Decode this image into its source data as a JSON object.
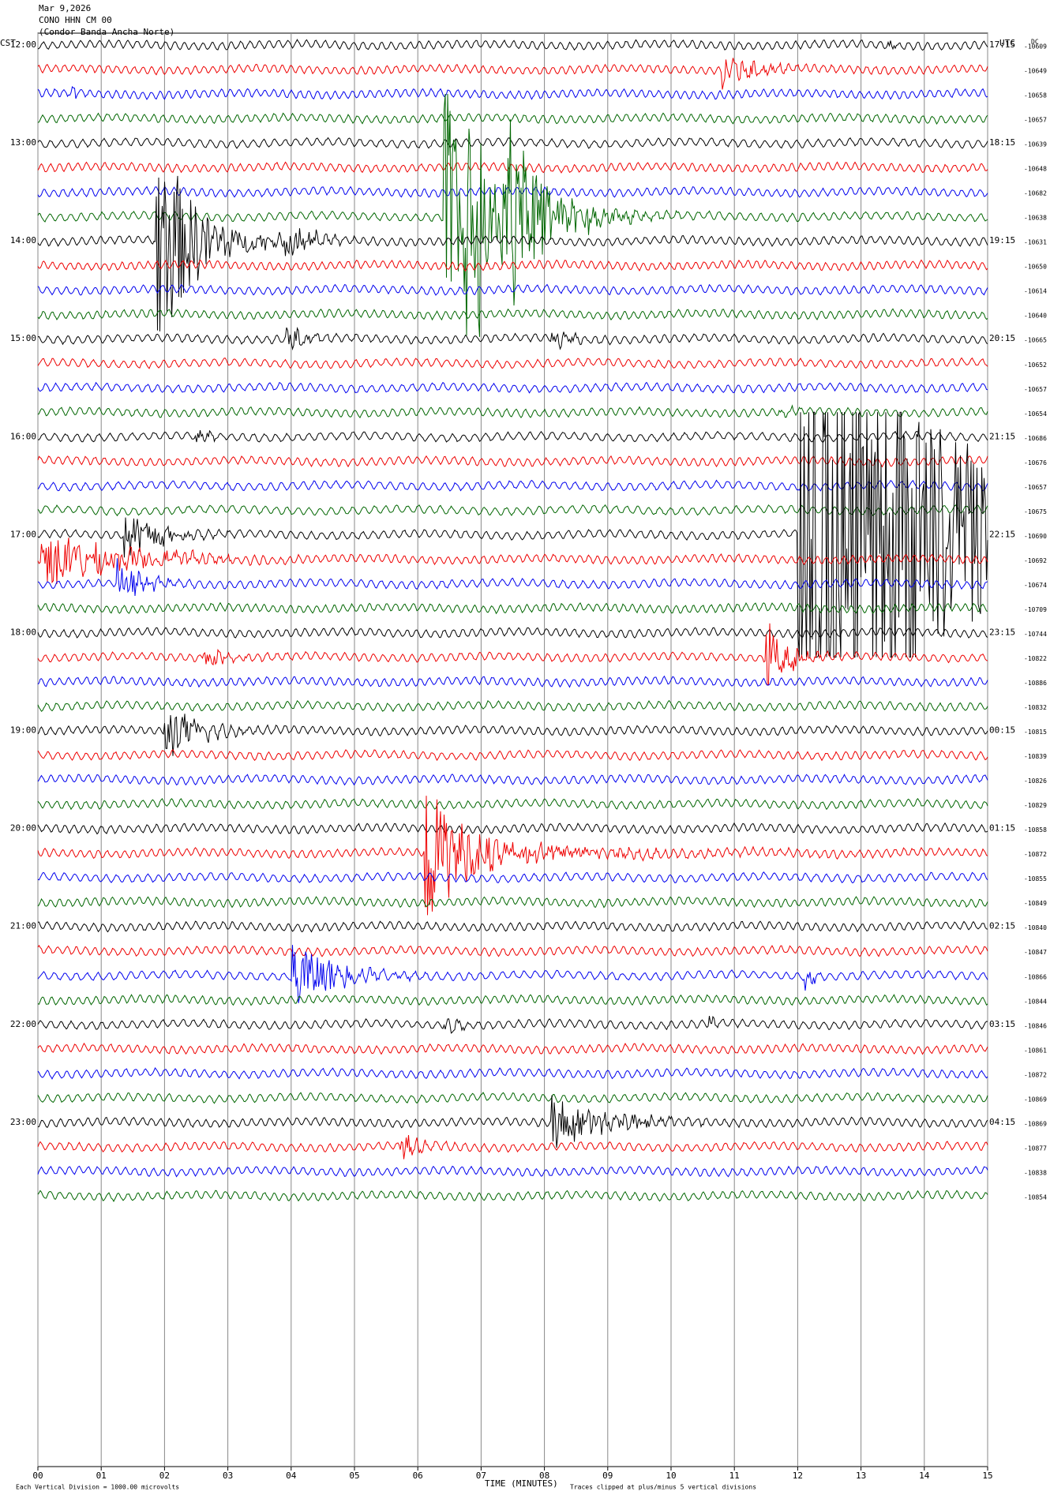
{
  "header": {
    "date": "Mar 9,2026",
    "station": "CONO HHN CM 00",
    "location": "(Condor Banda Ancha Norte)"
  },
  "left_label": "CST",
  "right_label": "UTC",
  "dc_label": "DC",
  "cst_labels": [
    "12:00",
    "13:00",
    "14:00",
    "15:00",
    "16:00",
    "17:00",
    "18:00",
    "19:00",
    "20:00",
    "21:00",
    "22:00",
    "23:00"
  ],
  "utc_labels": [
    "17:15",
    "18:15",
    "19:15",
    "20:15",
    "21:15",
    "22:15",
    "23:15",
    "00:15",
    "01:15",
    "02:15",
    "03:15",
    "04:15"
  ],
  "dc_values": [
    -10609,
    -10649,
    -10658,
    -10657,
    -10639,
    -10648,
    -10682,
    -10638,
    -10631,
    -10650,
    -10614,
    -10640,
    -10665,
    -10652,
    -10657,
    -10654,
    -10686,
    -10676,
    -10657,
    -10675,
    -10690,
    -10692,
    -10674,
    -10709,
    -10744,
    -10822,
    -10886,
    -10832,
    -10815,
    -10839,
    -10826,
    -10829,
    -10858,
    -10872,
    -10855,
    -10849,
    -10840,
    -10847,
    -10866,
    -10844,
    -10846,
    -10861,
    -10872,
    -10869,
    -10869,
    -10877,
    -10838,
    -10854
  ],
  "x_ticks": [
    "00",
    "01",
    "02",
    "03",
    "04",
    "05",
    "06",
    "07",
    "08",
    "09",
    "10",
    "11",
    "12",
    "13",
    "14",
    "15"
  ],
  "footer": {
    "scale": "Each Vertical Division = 1000.00 microvolts",
    "x_label": "TIME (MINUTES)",
    "clip_note": "Traces clipped at plus/minus 5 vertical divisions"
  }
}
